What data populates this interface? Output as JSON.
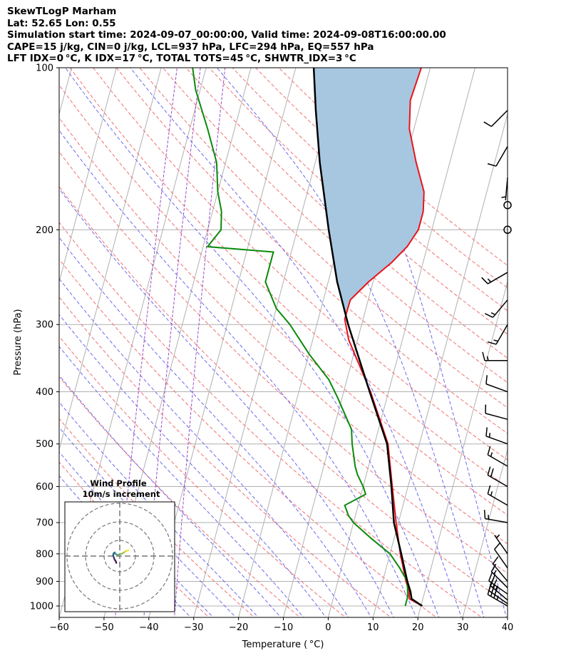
{
  "header": {
    "line1": "SkewTLogP Marham",
    "line2": "Lat: 52.65   Lon: 0.55",
    "line3": "Simulation start time: 2024-09-07_00:00:00, Valid time: 2024-09-08T16:00:00.00",
    "line4": "CAPE=15 j/kg, CIN=0 j/kg, LCL=937 hPa, LFC=294 hPa, EQ=557 hPa",
    "line5": "LFT IDX=0 °C, K IDX=17 °C, TOTAL TOTS=45 °C, SHWTR_IDX=3 °C"
  },
  "chart_data": {
    "type": "line",
    "subtype": "skew-t log-p",
    "xlabel": "Temperature ( °C)",
    "ylabel": "Pressure (hPa)",
    "xlim": [
      -60,
      40
    ],
    "ylim": [
      1050,
      100
    ],
    "x_ticks": [
      -60,
      -50,
      -40,
      -30,
      -20,
      -10,
      0,
      10,
      20,
      30,
      40
    ],
    "y_ticks": [
      100,
      200,
      300,
      400,
      500,
      600,
      700,
      800,
      900,
      1000
    ],
    "grid": true,
    "colors": {
      "temperature": "#e8141b",
      "dewpoint": "#0a8a0a",
      "parcel": "#000000",
      "cape_fill": "#a7c7e0",
      "dry_adiabat": "#f07070",
      "moist_adiabat": "#6a6aee",
      "mixing_ratio": "#9b4fc7",
      "isotherm": "#b0b0b0"
    },
    "series": [
      {
        "name": "Temperature",
        "points": [
          [
            20.3,
            1000
          ],
          [
            17,
            970
          ],
          [
            16.5,
            940
          ],
          [
            15.2,
            900
          ],
          [
            12.3,
            800
          ],
          [
            9.5,
            700
          ],
          [
            6.5,
            600
          ],
          [
            3,
            500
          ],
          [
            -4,
            400
          ],
          [
            -12,
            320
          ],
          [
            -14.1,
            293
          ],
          [
            -14,
            270
          ],
          [
            -11,
            250
          ],
          [
            -7,
            230
          ],
          [
            -4.5,
            215
          ],
          [
            -3,
            200
          ],
          [
            -3,
            185
          ],
          [
            -4,
            170
          ],
          [
            -7.5,
            150
          ],
          [
            -11,
            130
          ],
          [
            -12.5,
            115
          ],
          [
            -12,
            100
          ]
        ]
      },
      {
        "name": "Dewpoint",
        "points": [
          [
            16.5,
            1000
          ],
          [
            16.5,
            960
          ],
          [
            15.5,
            900
          ],
          [
            13,
            850
          ],
          [
            10,
            800
          ],
          [
            5,
            750
          ],
          [
            0,
            700
          ],
          [
            -1.5,
            680
          ],
          [
            -3,
            650
          ],
          [
            1,
            620
          ],
          [
            0,
            600
          ],
          [
            -2,
            570
          ],
          [
            -3,
            550
          ],
          [
            -5,
            500
          ],
          [
            -6,
            470
          ],
          [
            -11,
            410
          ],
          [
            -14,
            380
          ],
          [
            -20,
            340
          ],
          [
            -26,
            300
          ],
          [
            -30,
            280
          ],
          [
            -34,
            250
          ],
          [
            -34,
            220
          ],
          [
            -49,
            215
          ],
          [
            -47,
            200
          ],
          [
            -48,
            185
          ],
          [
            -50,
            170
          ],
          [
            -52,
            150
          ],
          [
            -56,
            130
          ],
          [
            -61,
            110
          ],
          [
            -63,
            100
          ]
        ]
      },
      {
        "name": "Parcel",
        "points": [
          [
            20.3,
            1000
          ],
          [
            17.5,
            970
          ],
          [
            16.8,
            940
          ],
          [
            15.5,
            900
          ],
          [
            12.5,
            800
          ],
          [
            9,
            700
          ],
          [
            6.3,
            600
          ],
          [
            2.8,
            500
          ],
          [
            -4.2,
            400
          ],
          [
            -13,
            300
          ],
          [
            -18,
            250
          ],
          [
            -23,
            200
          ],
          [
            -29,
            150
          ],
          [
            -33,
            120
          ],
          [
            -36,
            100
          ]
        ]
      }
    ],
    "wind_barbs": [
      {
        "p": 1000,
        "dir": 300,
        "spd": 35
      },
      {
        "p": 990,
        "dir": 305,
        "spd": 30
      },
      {
        "p": 975,
        "dir": 310,
        "spd": 25
      },
      {
        "p": 950,
        "dir": 305,
        "spd": 20
      },
      {
        "p": 925,
        "dir": 315,
        "spd": 15
      },
      {
        "p": 900,
        "dir": 320,
        "spd": 10
      },
      {
        "p": 850,
        "dir": 325,
        "spd": 10
      },
      {
        "p": 800,
        "dir": 325,
        "spd": 5
      },
      {
        "p": 700,
        "dir": 280,
        "spd": 15
      },
      {
        "p": 650,
        "dir": 300,
        "spd": 15
      },
      {
        "p": 600,
        "dir": 300,
        "spd": 20
      },
      {
        "p": 550,
        "dir": 300,
        "spd": 15
      },
      {
        "p": 500,
        "dir": 290,
        "spd": 15
      },
      {
        "p": 450,
        "dir": 285,
        "spd": 10
      },
      {
        "p": 400,
        "dir": 290,
        "spd": 10
      },
      {
        "p": 350,
        "dir": 270,
        "spd": 15
      },
      {
        "p": 300,
        "dir": 210,
        "spd": 15
      },
      {
        "p": 270,
        "dir": 220,
        "spd": 15
      },
      {
        "p": 240,
        "dir": 240,
        "spd": 15
      },
      {
        "p": 200,
        "dir": 0,
        "spd": 0
      },
      {
        "p": 180,
        "dir": 0,
        "spd": 0
      },
      {
        "p": 160,
        "dir": 185,
        "spd": 5
      },
      {
        "p": 140,
        "dir": 210,
        "spd": 10
      },
      {
        "p": 120,
        "dir": 225,
        "spd": 10
      }
    ],
    "hodograph": {
      "title_line1": "Wind Profile",
      "title_line2": "10m/s increment",
      "points": [
        [
          -1.5,
          -3
        ],
        [
          -1.8,
          -2.2
        ],
        [
          -2.3,
          -1.5
        ],
        [
          -2.6,
          -0.6
        ],
        [
          -2.9,
          0.4
        ],
        [
          -2.7,
          1.2
        ],
        [
          -2.2,
          1.6
        ],
        [
          -2,
          1
        ],
        [
          -1.5,
          0.8
        ],
        [
          -1,
          0.5
        ],
        [
          0,
          0.8
        ],
        [
          1.3,
          1.2
        ],
        [
          2,
          1.7
        ],
        [
          2.6,
          2.1
        ],
        [
          3.3,
          2.4
        ],
        [
          3.8,
          2.6
        ]
      ]
    }
  }
}
